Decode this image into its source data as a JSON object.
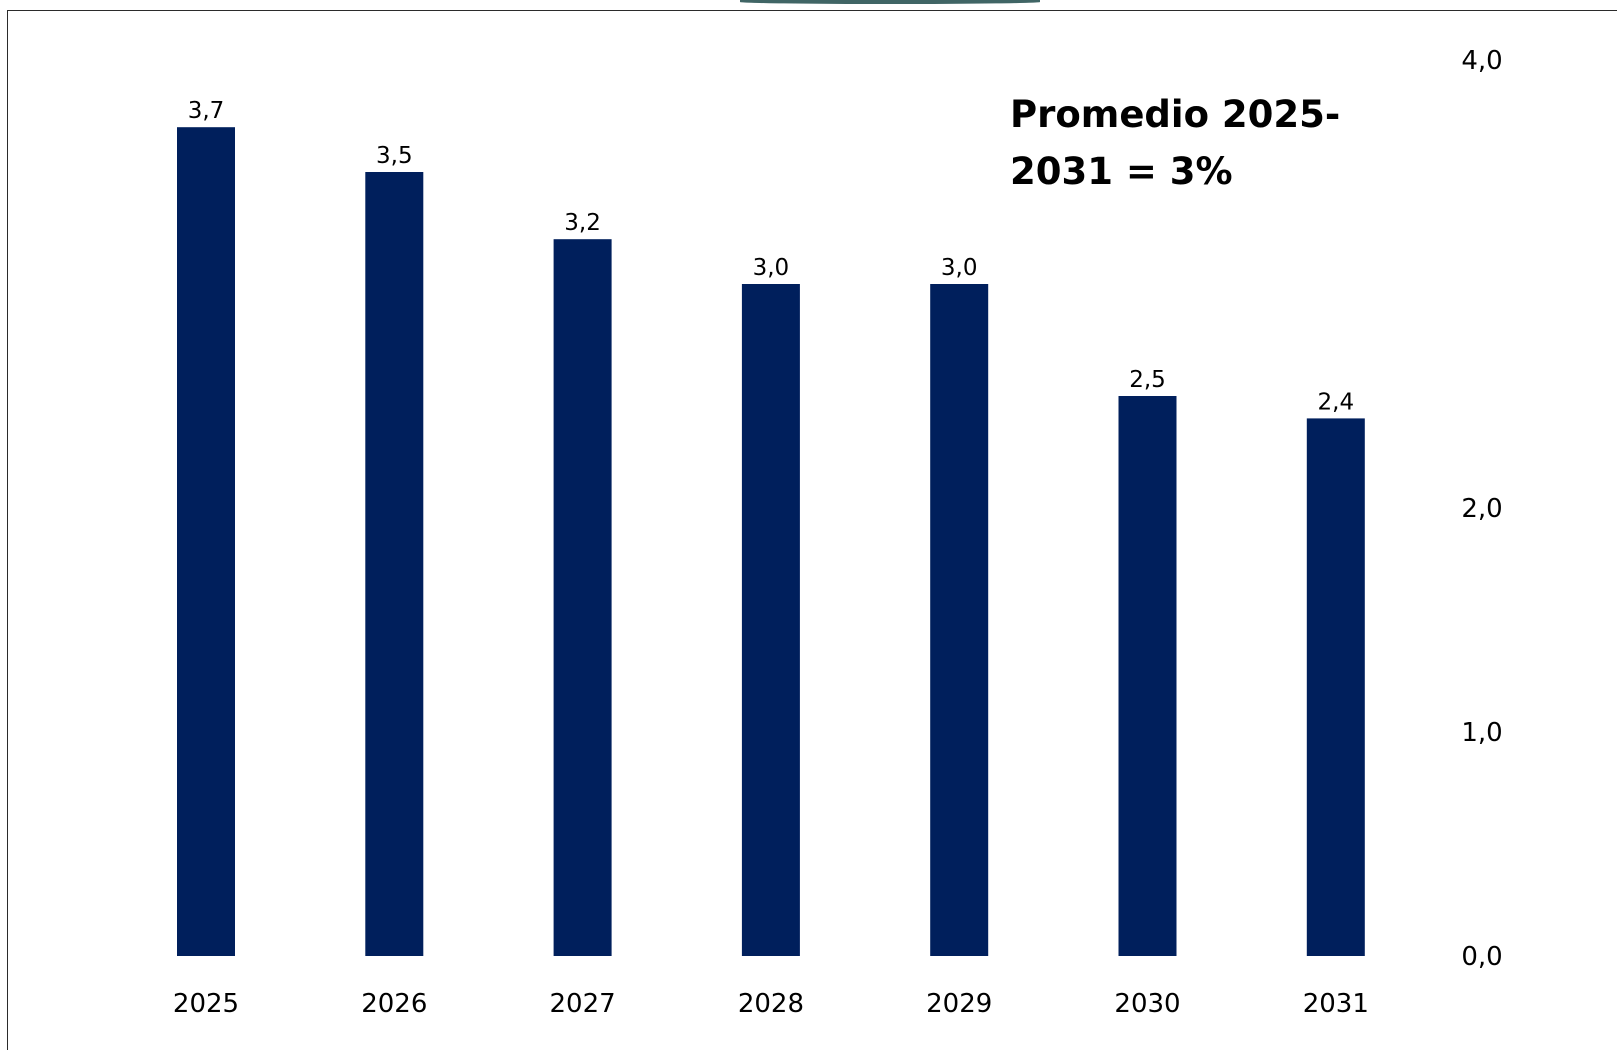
{
  "chart_data": {
    "type": "bar",
    "title": "",
    "xlabel": "",
    "ylabel": "",
    "categories": [
      "2025",
      "2026",
      "2027",
      "2028",
      "2029",
      "2030",
      "2031"
    ],
    "values": [
      3.7,
      3.5,
      3.2,
      3.0,
      3.0,
      2.5,
      2.4
    ],
    "value_labels": [
      "3,7",
      "3,5",
      "3,2",
      "3,0",
      "3,0",
      "2,5",
      "2,4"
    ],
    "ylim": [
      0,
      4.0
    ],
    "y_axis_position": "right",
    "y_ticks": [
      {
        "value": 0.0,
        "label": "0,0"
      },
      {
        "value": 1.0,
        "label": "1,0"
      },
      {
        "value": 2.0,
        "label": "2,0"
      },
      {
        "value": 4.0,
        "label": "4,0"
      }
    ],
    "grid": false,
    "legend": "none",
    "bar_color": "#001f5c",
    "annotation": "Promedio 2025-2031 = 3%"
  }
}
